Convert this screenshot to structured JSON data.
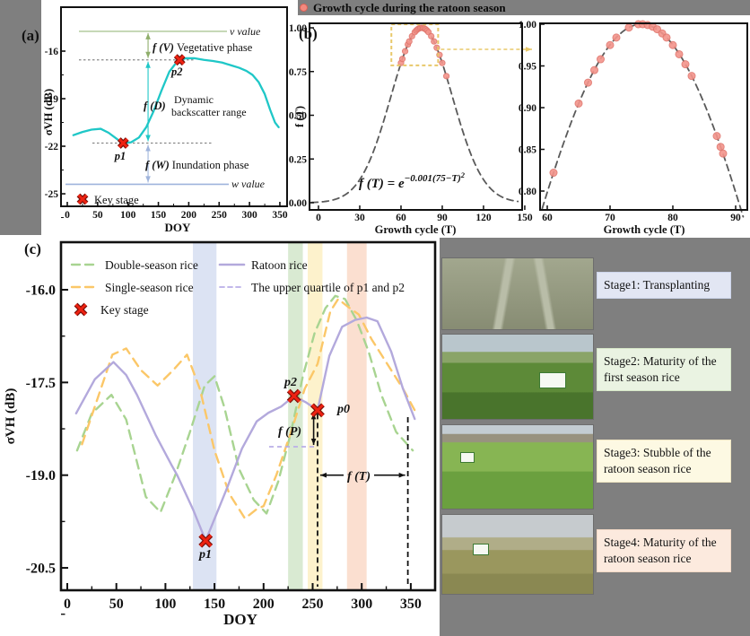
{
  "colors": {
    "background_grey": "#7f7f7f",
    "cyan_curve": "#1fc7c7",
    "v_line_green": "#b9cfa6",
    "olive_text": "#7f9b52",
    "inundation_blue": "#9fb4dc",
    "key_red": "#ee2211",
    "red_label": "#e8261a",
    "ratoon_purple": "#b3a9dc",
    "double_green": "#a8d491",
    "single_yellow": "#fbc768",
    "quartile_purple": "#b9aee8",
    "gauss_grey": "#5a5a5a",
    "salmon_point": "#f3948b",
    "salmon_edge": "#e0766d",
    "zoom_box_yellow": "#e8c86a",
    "band_blue": "#dce3f3",
    "band_green": "#d9ead2",
    "band_yellow": "#fdf2cc",
    "band_peach": "#fbdfd0"
  },
  "panel_a": {
    "tag": "(a)",
    "ylabel": "σVH (dB)",
    "xlabel": "DOY",
    "v_value": "v value",
    "w_value": "w value",
    "fv": "f (V)",
    "fv_text": "Vegetative phase",
    "fd": "f (D)",
    "fd_line1": "Dynamic",
    "fd_line2": "backscatter range",
    "fw": "f (W)",
    "fw_text": "Inundation phase",
    "p1": "p1",
    "p2": "p2",
    "key_stage": "Key stage"
  },
  "panel_b": {
    "tag": "(b)",
    "title": "Growth cycle during the ratoon season",
    "ylabel": "f (T)",
    "xlabel": "Growth cycle (T)",
    "formula_base": "f (T) = e",
    "formula_exp": "−0.001(75−T)",
    "formula_exp_sq": "2"
  },
  "panel_c": {
    "tag": "(c)",
    "ylabel": "σVH (dB)",
    "xlabel": "DOY",
    "legend": {
      "double": "Double-season rice",
      "single": "Single-season rice",
      "ratoon": "Ratoon rice",
      "quartile": "The upper quartile of p1 and p2",
      "key": "Key stage"
    },
    "p0": "p0",
    "p1": "p1",
    "p2": "p2",
    "fp": "f (P)",
    "ft": "f (T)"
  },
  "stages": {
    "items": [
      {
        "label": "Stage1: Transplanting"
      },
      {
        "label": "Stage2: Maturity of the first season rice"
      },
      {
        "label": "Stage3: Stubble of the ratoon season rice"
      },
      {
        "label": "Stage4: Maturity of the ratoon season rice"
      }
    ]
  },
  "chart_data": [
    {
      "id": "a",
      "type": "line",
      "xlabel": "DOY",
      "ylabel": "σVH (dB)",
      "xticks": [
        0,
        50,
        100,
        150,
        200,
        250,
        300,
        350
      ],
      "yticks": [
        -16,
        -19,
        -22,
        -25
      ],
      "xlim": [
        -10,
        370
      ],
      "ylim": [
        -26,
        -13.5
      ],
      "series": [
        {
          "name": "VH backscatter (ratoon rice)",
          "points": [
            [
              10,
              -21.3
            ],
            [
              25,
              -21.1
            ],
            [
              40,
              -20.95
            ],
            [
              55,
              -20.9
            ],
            [
              68,
              -21.15
            ],
            [
              82,
              -21.55
            ],
            [
              92,
              -21.8
            ],
            [
              105,
              -21.75
            ],
            [
              118,
              -21.45
            ],
            [
              130,
              -20.8
            ],
            [
              142,
              -19.8
            ],
            [
              155,
              -18.5
            ],
            [
              168,
              -17.3
            ],
            [
              178,
              -16.8
            ],
            [
              185,
              -16.55
            ],
            [
              195,
              -16.45
            ],
            [
              210,
              -16.45
            ],
            [
              225,
              -16.55
            ],
            [
              240,
              -16.62
            ],
            [
              255,
              -16.72
            ],
            [
              270,
              -16.9
            ],
            [
              283,
              -17.05
            ],
            [
              295,
              -17.25
            ],
            [
              305,
              -17.5
            ],
            [
              315,
              -17.95
            ],
            [
              325,
              -18.7
            ],
            [
              334,
              -19.7
            ],
            [
              342,
              -20.5
            ],
            [
              348,
              -20.8
            ]
          ]
        }
      ],
      "key_points": {
        "p1": [
          92,
          -21.8
        ],
        "p2": [
          185,
          -16.55
        ]
      },
      "ref_levels": {
        "v_value": -14.75,
        "w_value": -24.4
      },
      "phase_arrows_at_doy": 133
    },
    {
      "id": "b_left",
      "type": "scatter",
      "xlabel": "Growth cycle (T)",
      "ylabel": "f (T)",
      "xticks": [
        0,
        30,
        60,
        90,
        120,
        150
      ],
      "yticks": [
        0.0,
        0.25,
        0.5,
        0.75,
        1.0
      ],
      "xlim": [
        -7,
        148
      ],
      "ylim": [
        -0.04,
        1.03
      ],
      "fit_curve": {
        "formula": "f(T)=e^(-0.001(75-T)^2)",
        "coef": 0.001,
        "center": 75
      },
      "points": [
        [
          60,
          0.799
        ],
        [
          61,
          0.822
        ],
        [
          63,
          0.866
        ],
        [
          65,
          0.905
        ],
        [
          66,
          0.922
        ],
        [
          68,
          0.952
        ],
        [
          70,
          0.975
        ],
        [
          71,
          0.984
        ],
        [
          72,
          0.991
        ],
        [
          73,
          0.996
        ],
        [
          74,
          0.999
        ],
        [
          75,
          1.0
        ],
        [
          76,
          0.999
        ],
        [
          77,
          0.996
        ],
        [
          78,
          0.991
        ],
        [
          79,
          0.984
        ],
        [
          80,
          0.975
        ],
        [
          82,
          0.952
        ],
        [
          84,
          0.922
        ],
        [
          86,
          0.886
        ],
        [
          88,
          0.845
        ],
        [
          90,
          0.799
        ],
        [
          93,
          0.724
        ]
      ],
      "zoom_box": {
        "t0": 53,
        "t1": 87,
        "f0": 0.785,
        "f1": 1.02
      }
    },
    {
      "id": "b_right",
      "type": "scatter",
      "xlabel": "Growth cycle (T)",
      "xticks": [
        60,
        70,
        80,
        90
      ],
      "yticks": [
        0.8,
        0.85,
        0.9,
        0.95,
        1.0
      ],
      "xlim": [
        58.8,
        91.9
      ],
      "ylim": [
        0.777,
        1.008
      ],
      "fit_curve": {
        "coef": 0.001,
        "center": 75
      },
      "points": [
        [
          61,
          0.822
        ],
        [
          65,
          0.905
        ],
        [
          66.5,
          0.93
        ],
        [
          67.5,
          0.945
        ],
        [
          68.5,
          0.958
        ],
        [
          70,
          0.975
        ],
        [
          71,
          0.984
        ],
        [
          73,
          0.996
        ],
        [
          74.5,
          1.0
        ],
        [
          75.2,
          1.0
        ],
        [
          76,
          0.999
        ],
        [
          76.8,
          0.997
        ],
        [
          77.5,
          0.994
        ],
        [
          78.3,
          0.989
        ],
        [
          79,
          0.984
        ],
        [
          80,
          0.975
        ],
        [
          81,
          0.964
        ],
        [
          82,
          0.952
        ],
        [
          83,
          0.938
        ],
        [
          87,
          0.866
        ],
        [
          87.6,
          0.853
        ],
        [
          88,
          0.845
        ]
      ]
    },
    {
      "id": "c",
      "type": "line",
      "xlabel": "DOY",
      "ylabel": "σVH (dB)",
      "xticks": [
        0,
        50,
        100,
        150,
        200,
        250,
        300,
        350
      ],
      "yticks": [
        -16.0,
        -17.5,
        -19.0,
        -20.5
      ],
      "xlim": [
        -7,
        375
      ],
      "ylim": [
        -20.9,
        -15.2
      ],
      "series": [
        {
          "name": "Double-season rice",
          "style": "dashed",
          "points": [
            [
              10,
              -18.6
            ],
            [
              25,
              -18.0
            ],
            [
              45,
              -17.7
            ],
            [
              60,
              -18.1
            ],
            [
              80,
              -19.35
            ],
            [
              95,
              -19.6
            ],
            [
              110,
              -19.0
            ],
            [
              125,
              -18.3
            ],
            [
              140,
              -17.55
            ],
            [
              150,
              -17.4
            ],
            [
              160,
              -17.9
            ],
            [
              175,
              -18.9
            ],
            [
              190,
              -19.4
            ],
            [
              203,
              -19.62
            ],
            [
              215,
              -19.1
            ],
            [
              228,
              -18.3
            ],
            [
              240,
              -17.4
            ],
            [
              252,
              -16.7
            ],
            [
              263,
              -16.3
            ],
            [
              273,
              -16.1
            ],
            [
              283,
              -16.15
            ],
            [
              295,
              -16.5
            ],
            [
              307,
              -17.0
            ],
            [
              320,
              -17.7
            ],
            [
              335,
              -18.3
            ],
            [
              352,
              -18.6
            ]
          ]
        },
        {
          "name": "Single-season rice",
          "style": "dashed",
          "points": [
            [
              15,
              -18.5
            ],
            [
              30,
              -17.8
            ],
            [
              46,
              -17.05
            ],
            [
              60,
              -16.95
            ],
            [
              75,
              -17.3
            ],
            [
              92,
              -17.55
            ],
            [
              108,
              -17.3
            ],
            [
              122,
              -17.05
            ],
            [
              135,
              -17.6
            ],
            [
              150,
              -18.6
            ],
            [
              165,
              -19.3
            ],
            [
              181,
              -19.7
            ],
            [
              193,
              -19.55
            ],
            [
              200,
              -19.5
            ],
            [
              213,
              -19.0
            ],
            [
              228,
              -18.3
            ],
            [
              242,
              -17.6
            ],
            [
              255,
              -17.2
            ],
            [
              268,
              -16.35
            ],
            [
              276,
              -16.15
            ],
            [
              288,
              -16.3
            ],
            [
              297,
              -16.4
            ],
            [
              310,
              -16.8
            ],
            [
              328,
              -17.25
            ],
            [
              342,
              -17.6
            ],
            [
              354,
              -17.95
            ]
          ]
        },
        {
          "name": "Ratoon rice",
          "style": "solid",
          "points": [
            [
              9,
              -18.0
            ],
            [
              28,
              -17.45
            ],
            [
              47,
              -17.17
            ],
            [
              60,
              -17.38
            ],
            [
              71,
              -17.7
            ],
            [
              90,
              -18.35
            ],
            [
              106,
              -18.83
            ],
            [
              112,
              -19.0
            ],
            [
              128,
              -19.55
            ],
            [
              141,
              -20.06
            ],
            [
              163,
              -19.2
            ],
            [
              178,
              -18.57
            ],
            [
              193,
              -18.13
            ],
            [
              205,
              -17.99
            ],
            [
              218,
              -17.89
            ],
            [
              231,
              -17.72
            ],
            [
              243,
              -17.82
            ],
            [
              255,
              -17.95
            ],
            [
              267,
              -17.07
            ],
            [
              280,
              -16.6
            ],
            [
              293,
              -16.49
            ],
            [
              305,
              -16.45
            ],
            [
              316,
              -16.51
            ],
            [
              330,
              -17.0
            ],
            [
              342,
              -17.6
            ],
            [
              354,
              -18.09
            ]
          ]
        }
      ],
      "key_points": {
        "p1": [
          141,
          -20.06
        ],
        "p2": [
          231,
          -17.72
        ],
        "p0": [
          255,
          -17.95
        ]
      },
      "quartile_level": -18.54,
      "vlines_doy": [
        255,
        347
      ],
      "bands": [
        {
          "doy0": 128,
          "doy1": 152,
          "color": "#dce3f3"
        },
        {
          "doy0": 225,
          "doy1": 240,
          "color": "#d9ead2"
        },
        {
          "doy0": 245,
          "doy1": 260,
          "color": "#fdf2cc"
        },
        {
          "doy0": 285,
          "doy1": 305,
          "color": "#fbdfd0"
        }
      ],
      "fT_arrow": {
        "doy0": 255,
        "doy1": 347,
        "level": -19.0
      },
      "fP_arrow": {
        "doy": 251,
        "from": -17.95,
        "to": -18.54
      }
    }
  ]
}
